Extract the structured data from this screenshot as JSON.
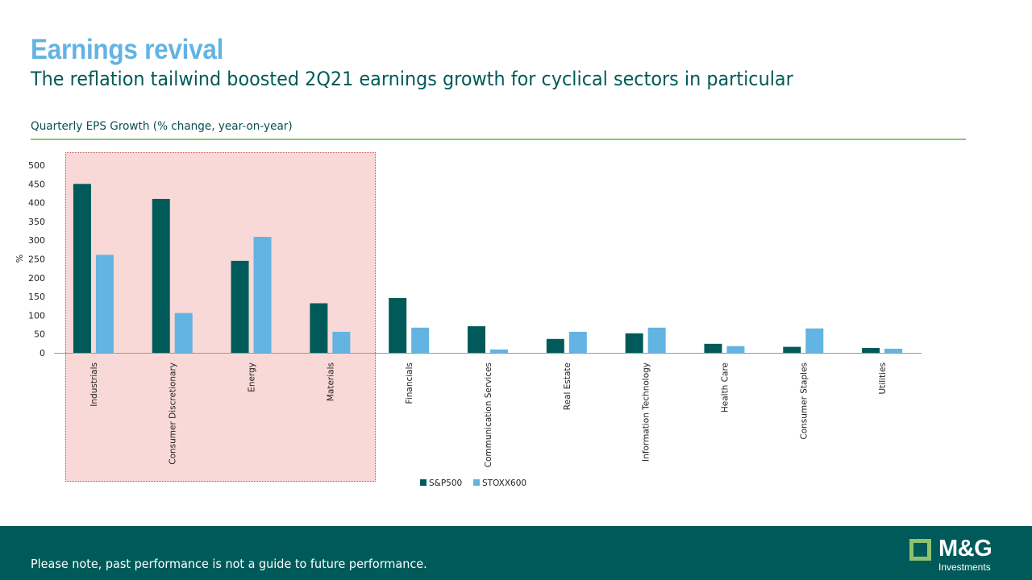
{
  "header": {
    "title": "Earnings revival",
    "subtitle": "The reflation tailwind boosted 2Q21 earnings growth for cyclical sectors in particular"
  },
  "footer": {
    "disclaimer": "Please note, past performance is not a guide to future performance.",
    "logo_name": "M&G",
    "logo_sub": "Investments"
  },
  "colors": {
    "sp500": "#005a5a",
    "stoxx600": "#63b3e3",
    "highlight_fill": "#f8d9d7",
    "highlight_border": "#d2564f",
    "title": "#63b3e3",
    "footer_bg": "#005a5a",
    "rule": "#8fc26e"
  },
  "chart_data": {
    "type": "bar",
    "title": "Quarterly EPS Growth (% change, year-on-year)",
    "ylabel": "%",
    "xlabel": "",
    "ylim": [
      0,
      500
    ],
    "yticks": [
      0,
      50,
      100,
      150,
      200,
      250,
      300,
      350,
      400,
      450,
      500
    ],
    "grid": false,
    "legend_position": "bottom",
    "categories": [
      "Industrials",
      "Consumer Discretionary",
      "Energy",
      "Materials",
      "Financials",
      "Communication Services",
      "Real Estate",
      "Information Technology",
      "Health Care",
      "Consumer Staples",
      "Utilities"
    ],
    "series": [
      {
        "name": "S&P500",
        "values": [
          450,
          410,
          245,
          132,
          146,
          71,
          37,
          52,
          24,
          16,
          13
        ]
      },
      {
        "name": "STOXX600",
        "values": [
          261,
          106,
          309,
          56,
          67,
          9,
          56,
          67,
          18,
          65,
          11
        ]
      }
    ],
    "highlighted_categories": [
      "Industrials",
      "Consumer Discretionary",
      "Energy",
      "Materials"
    ]
  }
}
